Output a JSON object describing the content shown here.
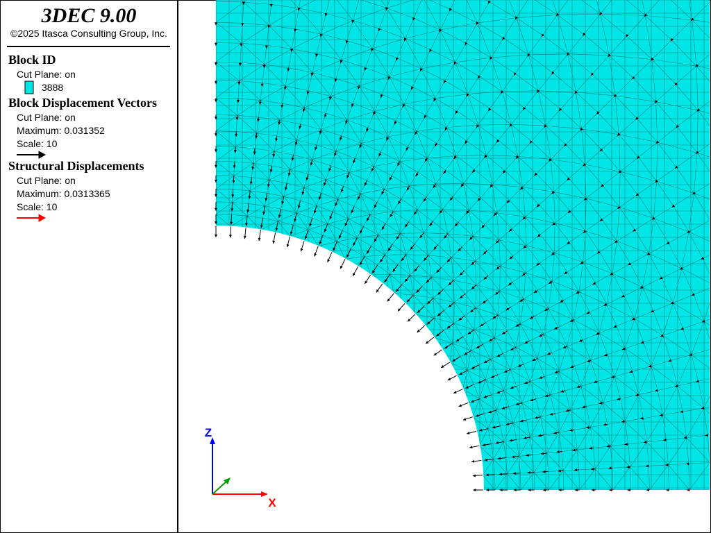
{
  "header": {
    "title": "3DEC 9.00",
    "copyright": "©2025 Itasca Consulting Group, Inc."
  },
  "legend": {
    "block_id": {
      "title": "Block  ID",
      "cut_plane": "Cut Plane: on",
      "items": [
        {
          "label": "3888",
          "color": "#00e5e5"
        }
      ]
    },
    "block_displacement": {
      "title": "Block Displacement Vectors",
      "cut_plane": "Cut Plane: on",
      "maximum": "Maximum: 0.031352",
      "scale": "Scale: 10",
      "color": "#000000"
    },
    "structural_displacement": {
      "title": "Structural Displacements",
      "cut_plane": "Cut Plane: on",
      "maximum": "Maximum: 0.0313365",
      "scale": "Scale: 10",
      "color": "#ff0000"
    }
  },
  "axes": {
    "z_label": "Z",
    "x_label": "X"
  }
}
